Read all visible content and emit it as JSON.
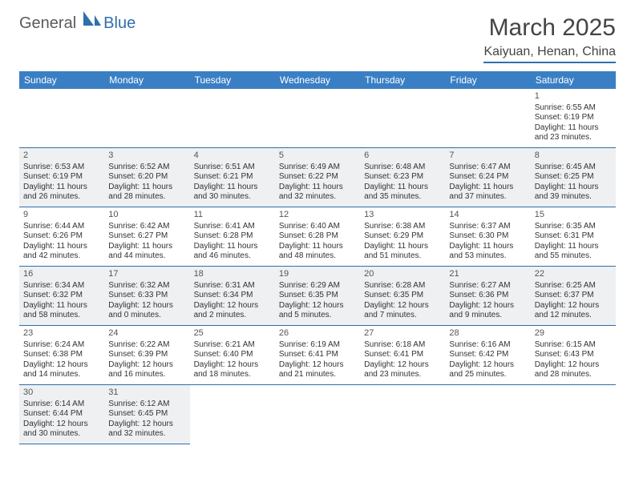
{
  "logo": {
    "general": "General",
    "blue": "Blue",
    "sail_color": "#2f6fad"
  },
  "title": "March 2025",
  "location": "Kaiyuan, Henan, China",
  "colors": {
    "header_bg": "#3a7fc4",
    "header_text": "#ffffff",
    "border": "#2f6fad",
    "shaded_bg": "#eef0f1",
    "text": "#333333"
  },
  "day_names": [
    "Sunday",
    "Monday",
    "Tuesday",
    "Wednesday",
    "Thursday",
    "Friday",
    "Saturday"
  ],
  "leading_blanks": 6,
  "days": [
    {
      "n": 1,
      "sunrise": "6:55 AM",
      "sunset": "6:19 PM",
      "dayh": 11,
      "daym": 23
    },
    {
      "n": 2,
      "sunrise": "6:53 AM",
      "sunset": "6:19 PM",
      "dayh": 11,
      "daym": 26
    },
    {
      "n": 3,
      "sunrise": "6:52 AM",
      "sunset": "6:20 PM",
      "dayh": 11,
      "daym": 28
    },
    {
      "n": 4,
      "sunrise": "6:51 AM",
      "sunset": "6:21 PM",
      "dayh": 11,
      "daym": 30
    },
    {
      "n": 5,
      "sunrise": "6:49 AM",
      "sunset": "6:22 PM",
      "dayh": 11,
      "daym": 32
    },
    {
      "n": 6,
      "sunrise": "6:48 AM",
      "sunset": "6:23 PM",
      "dayh": 11,
      "daym": 35
    },
    {
      "n": 7,
      "sunrise": "6:47 AM",
      "sunset": "6:24 PM",
      "dayh": 11,
      "daym": 37
    },
    {
      "n": 8,
      "sunrise": "6:45 AM",
      "sunset": "6:25 PM",
      "dayh": 11,
      "daym": 39
    },
    {
      "n": 9,
      "sunrise": "6:44 AM",
      "sunset": "6:26 PM",
      "dayh": 11,
      "daym": 42
    },
    {
      "n": 10,
      "sunrise": "6:42 AM",
      "sunset": "6:27 PM",
      "dayh": 11,
      "daym": 44
    },
    {
      "n": 11,
      "sunrise": "6:41 AM",
      "sunset": "6:28 PM",
      "dayh": 11,
      "daym": 46
    },
    {
      "n": 12,
      "sunrise": "6:40 AM",
      "sunset": "6:28 PM",
      "dayh": 11,
      "daym": 48
    },
    {
      "n": 13,
      "sunrise": "6:38 AM",
      "sunset": "6:29 PM",
      "dayh": 11,
      "daym": 51
    },
    {
      "n": 14,
      "sunrise": "6:37 AM",
      "sunset": "6:30 PM",
      "dayh": 11,
      "daym": 53
    },
    {
      "n": 15,
      "sunrise": "6:35 AM",
      "sunset": "6:31 PM",
      "dayh": 11,
      "daym": 55
    },
    {
      "n": 16,
      "sunrise": "6:34 AM",
      "sunset": "6:32 PM",
      "dayh": 11,
      "daym": 58
    },
    {
      "n": 17,
      "sunrise": "6:32 AM",
      "sunset": "6:33 PM",
      "dayh": 12,
      "daym": 0
    },
    {
      "n": 18,
      "sunrise": "6:31 AM",
      "sunset": "6:34 PM",
      "dayh": 12,
      "daym": 2
    },
    {
      "n": 19,
      "sunrise": "6:29 AM",
      "sunset": "6:35 PM",
      "dayh": 12,
      "daym": 5
    },
    {
      "n": 20,
      "sunrise": "6:28 AM",
      "sunset": "6:35 PM",
      "dayh": 12,
      "daym": 7
    },
    {
      "n": 21,
      "sunrise": "6:27 AM",
      "sunset": "6:36 PM",
      "dayh": 12,
      "daym": 9
    },
    {
      "n": 22,
      "sunrise": "6:25 AM",
      "sunset": "6:37 PM",
      "dayh": 12,
      "daym": 12
    },
    {
      "n": 23,
      "sunrise": "6:24 AM",
      "sunset": "6:38 PM",
      "dayh": 12,
      "daym": 14
    },
    {
      "n": 24,
      "sunrise": "6:22 AM",
      "sunset": "6:39 PM",
      "dayh": 12,
      "daym": 16
    },
    {
      "n": 25,
      "sunrise": "6:21 AM",
      "sunset": "6:40 PM",
      "dayh": 12,
      "daym": 18
    },
    {
      "n": 26,
      "sunrise": "6:19 AM",
      "sunset": "6:41 PM",
      "dayh": 12,
      "daym": 21
    },
    {
      "n": 27,
      "sunrise": "6:18 AM",
      "sunset": "6:41 PM",
      "dayh": 12,
      "daym": 23
    },
    {
      "n": 28,
      "sunrise": "6:16 AM",
      "sunset": "6:42 PM",
      "dayh": 12,
      "daym": 25
    },
    {
      "n": 29,
      "sunrise": "6:15 AM",
      "sunset": "6:43 PM",
      "dayh": 12,
      "daym": 28
    },
    {
      "n": 30,
      "sunrise": "6:14 AM",
      "sunset": "6:44 PM",
      "dayh": 12,
      "daym": 30
    },
    {
      "n": 31,
      "sunrise": "6:12 AM",
      "sunset": "6:45 PM",
      "dayh": 12,
      "daym": 32
    }
  ],
  "labels": {
    "sunrise": "Sunrise:",
    "sunset": "Sunset:",
    "daylight": "Daylight:",
    "hours": "hours",
    "and": "and",
    "minutes": "minutes."
  }
}
